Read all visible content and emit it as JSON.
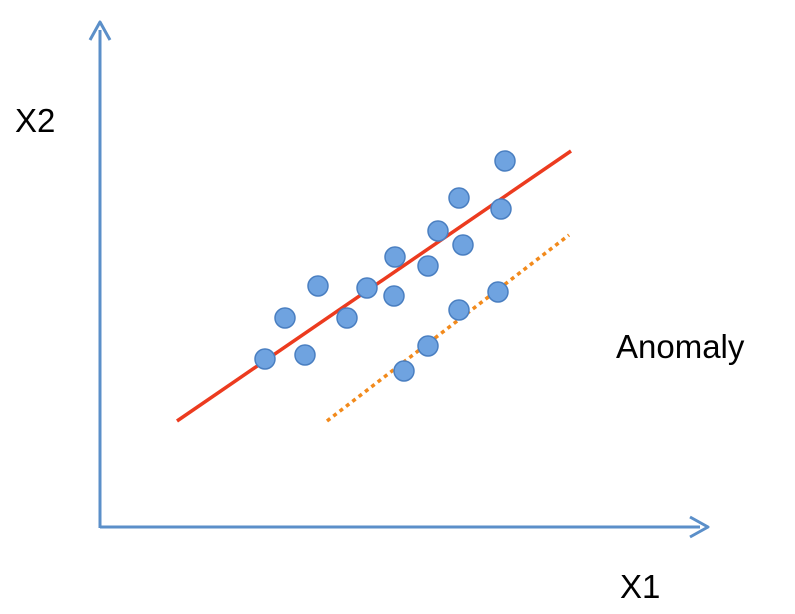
{
  "labels": {
    "y_axis": "X2",
    "x_axis": "X1",
    "annotation": "Anomaly"
  },
  "colors": {
    "axis": "#5b8fc9",
    "fit_line": "#ec3b1f",
    "anomaly_line": "#f28a1c",
    "point_fill": "#6fa3e0",
    "point_stroke": "#4a7fc1"
  }
}
